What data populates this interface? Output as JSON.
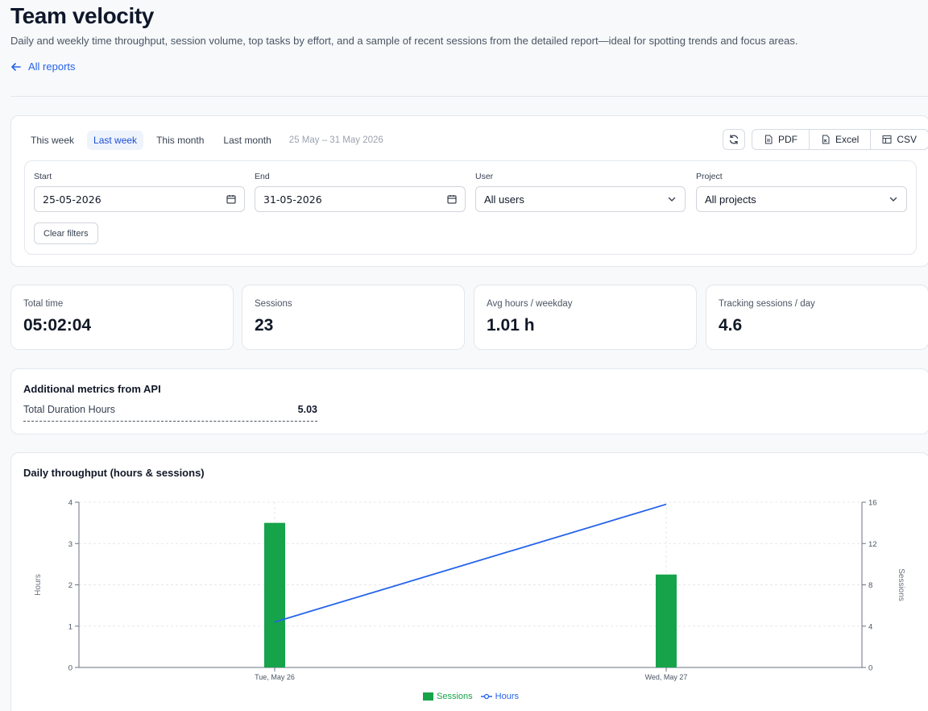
{
  "header": {
    "title": "Team velocity",
    "subtitle": "Daily and weekly time throughput, session volume, top tasks by effort, and a sample of recent sessions from the detailed report—ideal for spotting trends and focus areas.",
    "back_link": "All reports"
  },
  "filters": {
    "presets": [
      "This week",
      "Last week",
      "This month",
      "Last month"
    ],
    "active_preset": "Last week",
    "range_label": "25 May – 31 May 2026",
    "export": {
      "pdf": "PDF",
      "excel": "Excel",
      "csv": "CSV"
    },
    "start": {
      "label": "Start",
      "value": "25-05-2026"
    },
    "end": {
      "label": "End",
      "value": "31-05-2026"
    },
    "user": {
      "label": "User",
      "value": "All users"
    },
    "project": {
      "label": "Project",
      "value": "All projects"
    },
    "clear_label": "Clear filters"
  },
  "metrics": [
    {
      "label": "Total time",
      "value": "05:02:04"
    },
    {
      "label": "Sessions",
      "value": "23"
    },
    {
      "label": "Avg hours / weekday",
      "value": "1.01 h"
    },
    {
      "label": "Tracking sessions / day",
      "value": "4.6"
    }
  ],
  "additional": {
    "title": "Additional metrics from API",
    "rows": [
      {
        "key": "Total Duration Hours",
        "value": "5.03"
      }
    ]
  },
  "chart_data": {
    "type": "bar",
    "title": "Daily throughput (hours & sessions)",
    "categories": [
      "Tue, May 26",
      "Wed, May 27"
    ],
    "series": [
      {
        "name": "Sessions",
        "type": "bar",
        "axis": "right",
        "values": [
          14,
          9
        ],
        "color": "#16a34a"
      },
      {
        "name": "Hours",
        "type": "line",
        "axis": "left",
        "values": [
          1.1,
          3.95
        ],
        "color": "#2563eb"
      }
    ],
    "ylabel": "Hours",
    "y2label": "Sessions",
    "ylim": [
      0,
      4
    ],
    "y2lim": [
      0,
      16
    ],
    "yticks": [
      0,
      1,
      2,
      3,
      4
    ],
    "y2ticks": [
      0,
      4,
      8,
      12,
      16
    ],
    "grid": true,
    "legend": "bottom-center"
  }
}
